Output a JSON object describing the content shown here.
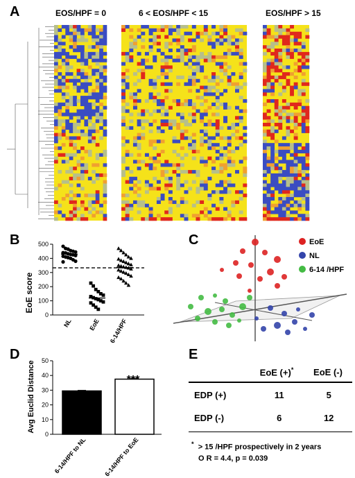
{
  "figure": {
    "panels": {
      "a": {
        "letter": "A",
        "heatmap_titles": [
          "EOS/HPF = 0",
          "6 < EOS/HPF < 15",
          "EOS/HPF > 15"
        ],
        "color_scale": {
          "low": "#3a4cc2",
          "mid_low": "#b7bf8a",
          "mid": "#f5e21a",
          "high": "#e0281c"
        }
      },
      "b": {
        "letter": "B",
        "y_axis_label": "EoE score",
        "y_ticks": [
          "0",
          "100",
          "200",
          "300",
          "400",
          "500"
        ],
        "x_labels": [
          "NL",
          "EoE",
          "6-14/HPF"
        ]
      },
      "c": {
        "letter": "C",
        "legend": [
          {
            "label": "EoE",
            "color": "#dd2222"
          },
          {
            "label": "NL",
            "color": "#3344aa"
          },
          {
            "label": "6-14 /HPF",
            "color": "#44bb44"
          }
        ]
      },
      "d": {
        "letter": "D",
        "y_axis_label": "Avg Euclid Distance",
        "y_ticks": [
          "0",
          "10",
          "20",
          "30",
          "40",
          "50"
        ],
        "x_labels": [
          "6-14/HPF to NL",
          "6-14/HPF to EoE"
        ],
        "significance": "***"
      },
      "e": {
        "letter": "E",
        "col_headers": [
          "EoE (+)",
          "EoE (-)"
        ],
        "col_header_superscript": "*",
        "rows": [
          {
            "label": "EDP (+)",
            "values": [
              "11",
              "5"
            ]
          },
          {
            "label": "EDP (-)",
            "values": [
              "6",
              "12"
            ]
          }
        ],
        "footnote_mark": "*",
        "footnote": "> 15 /HPF prospectively in 2 years",
        "stat": "O R = 4.4, p = 0.039"
      }
    }
  },
  "chart_data": [
    {
      "type": "scatter",
      "panel": "B",
      "ylabel": "EoE score",
      "ylim": [
        0,
        500
      ],
      "categories": [
        "NL",
        "EoE",
        "6-14/HPF"
      ],
      "threshold_line": 333,
      "series": [
        {
          "name": "NL",
          "marker": "circle",
          "mean": 430,
          "values": [
            485,
            470,
            465,
            455,
            450,
            445,
            440,
            438,
            432,
            428,
            425,
            420,
            415,
            410,
            405,
            400,
            390,
            380,
            375
          ]
        },
        {
          "name": "EoE",
          "marker": "square",
          "mean": 120,
          "values": [
            225,
            205,
            180,
            165,
            150,
            140,
            130,
            122,
            115,
            108,
            100,
            92,
            85,
            70,
            55,
            40
          ]
        },
        {
          "name": "6-14/HPF",
          "marker": "triangle",
          "mean": 335,
          "values": [
            470,
            455,
            440,
            425,
            410,
            400,
            395,
            385,
            378,
            370,
            362,
            355,
            350,
            345,
            340,
            336,
            332,
            325,
            318,
            310,
            302,
            295,
            285,
            275,
            265,
            255,
            240,
            225,
            210
          ]
        }
      ]
    },
    {
      "type": "bar",
      "panel": "D",
      "ylabel": "Avg Euclid Distance",
      "ylim": [
        0,
        50
      ],
      "categories": [
        "6-14/HPF to NL",
        "6-14/HPF to EoE"
      ],
      "values": [
        29.5,
        37.5
      ],
      "errors": [
        0.4,
        0.6
      ],
      "fills": [
        "#000000",
        "#ffffff"
      ],
      "annotation": "***"
    }
  ]
}
